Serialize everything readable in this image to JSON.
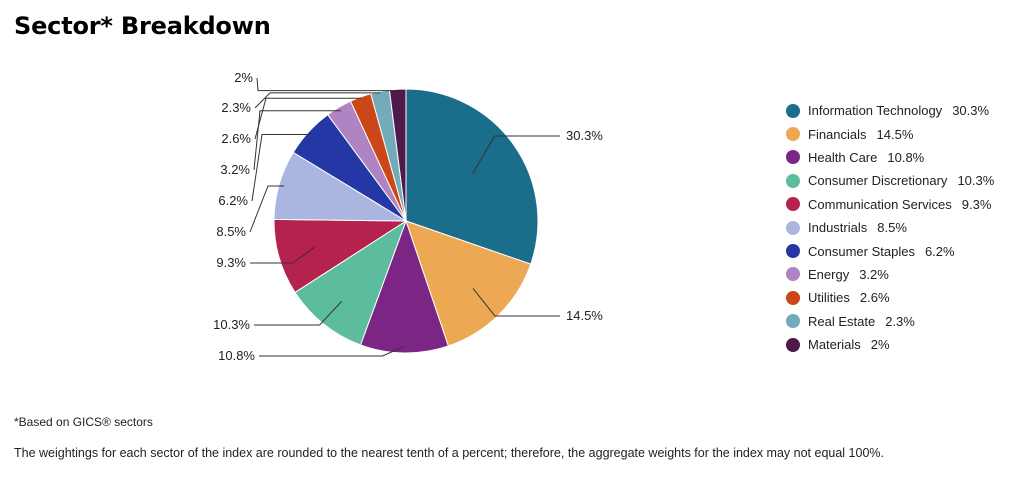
{
  "title": "Sector* Breakdown",
  "footnote": "*Based on GICS® sectors",
  "disclaimer": "The weightings for each sector of the index are rounded to the nearest tenth of a percent; therefore, the aggregate weights for the index may not equal 100%.",
  "chart_data": {
    "type": "pie",
    "title": "Sector* Breakdown",
    "legend_position": "right",
    "slices": [
      {
        "name": "Information Technology",
        "value": 30.3,
        "label": "30.3%",
        "color": "#1a6e8b"
      },
      {
        "name": "Financials",
        "value": 14.5,
        "label": "14.5%",
        "color": "#eda853"
      },
      {
        "name": "Health Care",
        "value": 10.8,
        "label": "10.8%",
        "color": "#7b2584"
      },
      {
        "name": "Consumer Discretionary",
        "value": 10.3,
        "label": "10.3%",
        "color": "#5dbc9d"
      },
      {
        "name": "Communication Services",
        "value": 9.3,
        "label": "9.3%",
        "color": "#b5224d"
      },
      {
        "name": "Industrials",
        "value": 8.5,
        "label": "8.5%",
        "color": "#abb6e0"
      },
      {
        "name": "Consumer Staples",
        "value": 6.2,
        "label": "6.2%",
        "color": "#2437a5"
      },
      {
        "name": "Energy",
        "value": 3.2,
        "label": "3.2%",
        "color": "#b083c2"
      },
      {
        "name": "Utilities",
        "value": 2.6,
        "label": "2.6%",
        "color": "#cc4717"
      },
      {
        "name": "Real Estate",
        "value": 2.3,
        "label": "2.3%",
        "color": "#74abba"
      },
      {
        "name": "Materials",
        "value": 2,
        "label": "2%",
        "color": "#4e1a4b"
      }
    ]
  }
}
